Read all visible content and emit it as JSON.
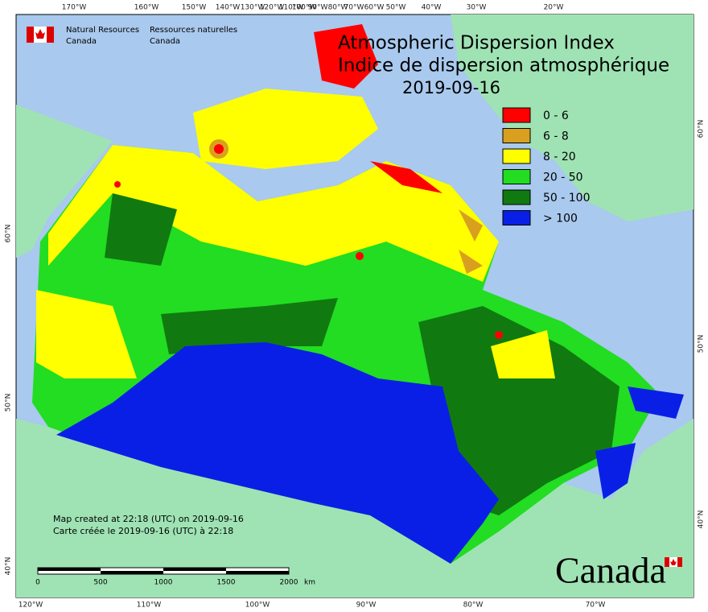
{
  "header": {
    "org_en": [
      "Natural Resources",
      "Canada"
    ],
    "org_fr": [
      "Ressources naturelles",
      "Canada"
    ]
  },
  "title": {
    "line1": "Atmospheric Dispersion Index",
    "line2": "Indice de dispersion atmosphérique",
    "date": "2019-09-16"
  },
  "legend": [
    {
      "label": "0 - 6",
      "color": "#ff0000"
    },
    {
      "label": "6 - 8",
      "color": "#d9a020"
    },
    {
      "label": "8 - 20",
      "color": "#ffff00"
    },
    {
      "label": "20 - 50",
      "color": "#22dd22"
    },
    {
      "label": "50 - 100",
      "color": "#107a10"
    },
    {
      "label": "> 100",
      "color": "#0a1fe6"
    }
  ],
  "graticule": {
    "top": [
      "170°W",
      "160°W",
      "150°W",
      "140°W",
      "130°W",
      "120°W",
      "110°W",
      "100°W",
      "90°W",
      "80°W",
      "70°W",
      "60°W",
      "50°W",
      "40°W",
      "30°W",
      "20°W"
    ],
    "bottom": [
      "120°W",
      "110°W",
      "100°W",
      "90°W",
      "80°W",
      "70°W"
    ],
    "left": [
      "60°N",
      "50°N",
      "40°N"
    ],
    "right": [
      "60°N",
      "50°N",
      "40°N"
    ]
  },
  "footnote": [
    "Map created at 22:18 (UTC) on 2019-09-16",
    "Carte créée le 2019-09-16 (UTC) à 22:18"
  ],
  "scale_bar": {
    "labels": [
      "0",
      "500",
      "1000",
      "1500",
      "2000"
    ],
    "unit": "km"
  },
  "wordmark": "Canada"
}
